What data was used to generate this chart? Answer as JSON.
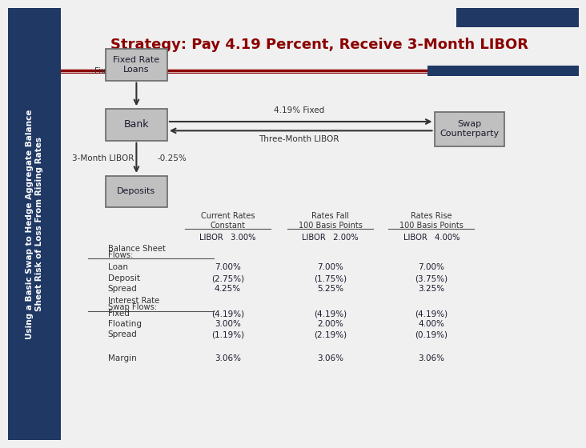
{
  "title": "Strategy: Pay 4.19 Percent, Receive 3-Month LIBOR",
  "title_color": "#8B0000",
  "sidebar_text_line1": "Using a Basic Swap to Hedge Aggregate Balance",
  "sidebar_text_line2": "Sheet Risk of Loss From Rising Rates",
  "sidebar_bg": "#1F3864",
  "sidebar_text_color": "#FFFFFF",
  "bg_color": "#F0F0F0",
  "box_fill": "#C0C0C0",
  "box_edge": "#696969",
  "dark_blue": "#1F3864",
  "dark_red": "#8B0000",
  "arrow_color": "#333333",
  "flow_labels": {
    "fixed_700": "Fixed  7.00%",
    "fixed_419": "4.19% Fixed",
    "three_month_libor_arrow": "Three-Month LIBOR",
    "three_month_libor_label": "3-Month LIBOR",
    "spread_label": "-0.25%"
  },
  "table_header_col1": "Current Rates\nConstant",
  "table_header_col2": "Rates Fall\n100 Basis Points",
  "table_header_col3": "Rates Rise\n100 Basis Points",
  "libor_row": [
    "LIBOR   3.00%",
    "LIBOR   2.00%",
    "LIBOR   4.00%"
  ],
  "table_rows": [
    [
      "Loan",
      "7.00%",
      "7.00%",
      "7.00%"
    ],
    [
      "Deposit",
      "(2.75%)",
      "(1.75%)",
      "(3.75%)"
    ],
    [
      "Spread",
      "4.25%",
      "5.25%",
      "3.25%"
    ],
    [
      "Fixed",
      "(4.19%)",
      "(4.19%)",
      "(4.19%)"
    ],
    [
      "Floating",
      "3.00%",
      "2.00%",
      "4.00%"
    ],
    [
      "Spread",
      "(1.19%)",
      "(2.19%)",
      "(0.19%)"
    ],
    [
      "Margin",
      "3.06%",
      "3.06%",
      "3.06%"
    ]
  ]
}
